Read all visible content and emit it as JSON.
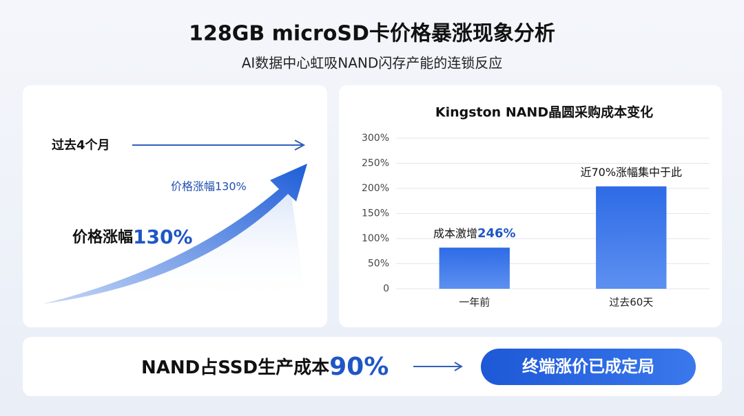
{
  "header": {
    "title": "128GB microSD卡价格暴涨现象分析",
    "subtitle": "AI数据中心虹吸NAND闪存产能的连锁反应"
  },
  "left_panel": {
    "period": "过去4个月",
    "arrow_label": "价格涨幅130%",
    "headline": "价格涨幅",
    "headline_value": "130%"
  },
  "chart_data": {
    "type": "bar",
    "title": "Kingston NAND晶圆采购成本变化",
    "categories": [
      "一年前",
      "过去60天"
    ],
    "values": [
      82,
      204
    ],
    "color": "#2e6be6",
    "annotations": [
      {
        "text": "成本激增",
        "highlight": "246%"
      },
      {
        "text": "近70%涨幅集中于此"
      }
    ],
    "ylim": [
      0,
      300
    ],
    "yticks": [
      0,
      {
        "value": 50,
        "label": "50%"
      },
      {
        "value": 100,
        "label": "100%"
      },
      {
        "value": 150,
        "label": "150%"
      },
      {
        "value": 200,
        "label": "200%"
      },
      {
        "value": 250,
        "label": "250%"
      },
      {
        "value": 300,
        "label": "300%"
      }
    ],
    "grid": true
  },
  "footer": {
    "text": "NAND占SSD生产成本",
    "value": "90%",
    "button": "终端涨价已成定局"
  }
}
